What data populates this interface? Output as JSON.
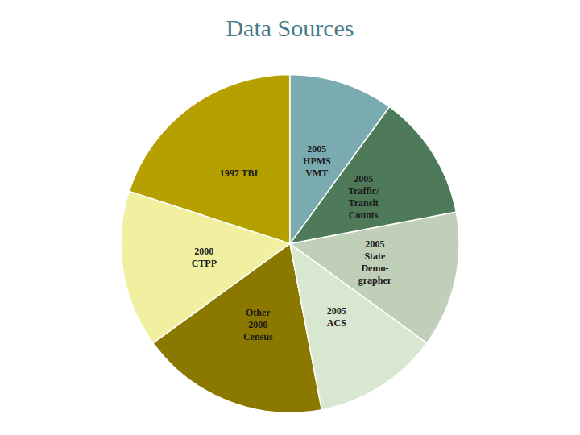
{
  "chart_data": {
    "type": "pie",
    "title": "Data Sources",
    "categories": [
      "1997 TBI",
      "2000\nCTPP",
      "Other\n2000\nCensus",
      "2005\nACS",
      "2005\nState\nDemo-\ngrapher",
      "2005\nTraffic/\nTransit\nCounts",
      "2005\nHPMS\nVMT"
    ],
    "values": [
      20,
      15,
      18,
      12,
      13,
      12,
      10
    ],
    "colors": [
      "#b5a000",
      "#f0f0a0",
      "#8b7800",
      "#d8e8d0",
      "#c0cfb8",
      "#4e7a5a",
      "#7aabb0"
    ]
  }
}
